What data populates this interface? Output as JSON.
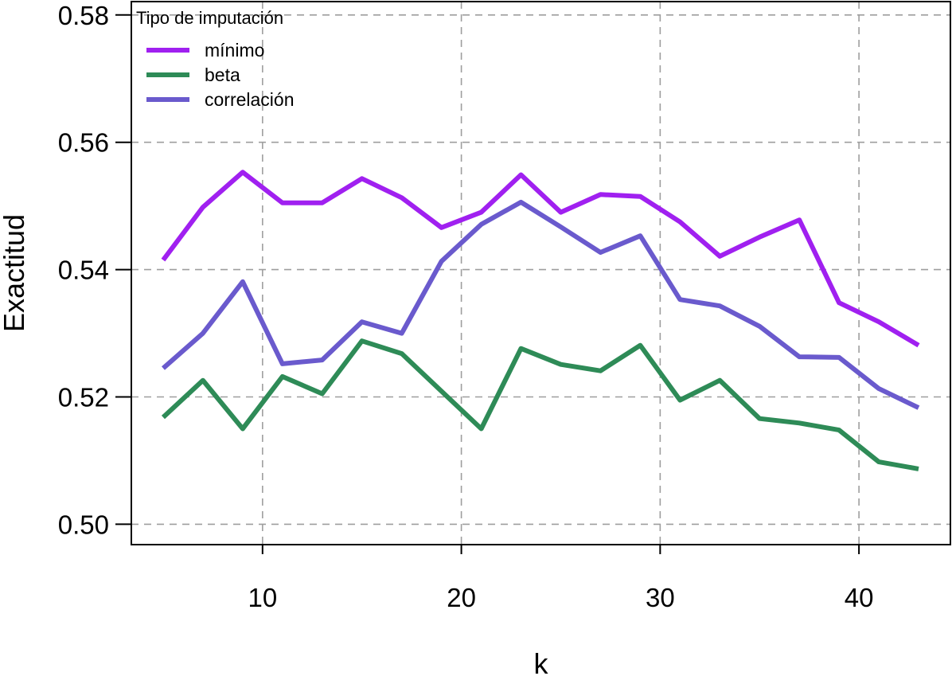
{
  "chart_data": {
    "type": "line",
    "xlabel": "k",
    "ylabel": "Exactitud",
    "xlim": [
      3.4,
      44.6
    ],
    "ylim": [
      0.4968,
      0.5821
    ],
    "x_ticks": [
      10,
      20,
      30,
      40
    ],
    "x_tick_labels": [
      "10",
      "20",
      "30",
      "40"
    ],
    "y_ticks": [
      0.5,
      0.52,
      0.54,
      0.56,
      0.58
    ],
    "y_tick_labels": [
      "0.50",
      "0.52",
      "0.54",
      "0.56",
      "0.58"
    ],
    "grid": true,
    "legend": {
      "title": "Tipo de imputación",
      "placement": "top-left"
    },
    "x": [
      5,
      7,
      9,
      11,
      13,
      15,
      17,
      19,
      21,
      23,
      25,
      27,
      29,
      31,
      33,
      35,
      37,
      39,
      41,
      43
    ],
    "series": [
      {
        "name": "mínimo",
        "color": "#a020f0",
        "values": [
          0.5415,
          0.5498,
          0.5553,
          0.5505,
          0.5505,
          0.5543,
          0.5513,
          0.5466,
          0.549,
          0.5549,
          0.549,
          0.5518,
          0.5515,
          0.5475,
          0.5421,
          0.5451,
          0.5478,
          0.5348,
          0.5318,
          0.5281
        ]
      },
      {
        "name": "beta",
        "color": "#2e8b57",
        "values": [
          0.5168,
          0.5226,
          0.515,
          0.5232,
          0.5205,
          0.5288,
          0.5268,
          0.5209,
          0.515,
          0.5276,
          0.5251,
          0.5241,
          0.5281,
          0.5195,
          0.5226,
          0.5166,
          0.5159,
          0.5148,
          0.5098,
          0.5087
        ]
      },
      {
        "name": "correlación",
        "color": "#6a5acd",
        "values": [
          0.5245,
          0.53,
          0.5381,
          0.5252,
          0.5258,
          0.5318,
          0.53,
          0.5413,
          0.5471,
          0.5506,
          0.5467,
          0.5427,
          0.5453,
          0.5353,
          0.5343,
          0.5311,
          0.5263,
          0.5262,
          0.5213,
          0.5183
        ]
      }
    ]
  }
}
